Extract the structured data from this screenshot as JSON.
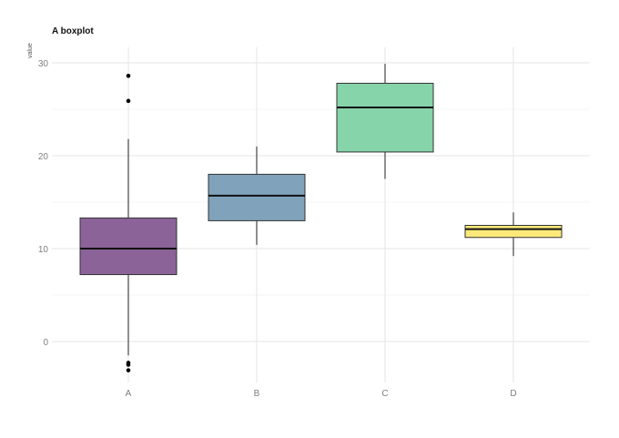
{
  "chart_data": {
    "type": "boxplot",
    "title": "A boxplot",
    "xlabel": "",
    "ylabel": "value",
    "ylim": [
      -4.5,
      31.5
    ],
    "yticks": [
      0,
      10,
      20,
      30
    ],
    "grid": true,
    "legend": null,
    "categories": [
      "A",
      "B",
      "C",
      "D"
    ],
    "boxes": [
      {
        "name": "A",
        "whisker_low": -1.5,
        "q1": 7.2,
        "median": 10.0,
        "q3": 13.3,
        "whisker_high": 21.8,
        "outliers": [
          28.6,
          25.9,
          -2.3,
          -2.5,
          -3.1
        ],
        "color": "#8b6399"
      },
      {
        "name": "B",
        "whisker_low": 10.4,
        "q1": 13.0,
        "median": 15.7,
        "q3": 18.0,
        "whisker_high": 21.0,
        "outliers": [],
        "color": "#80a3bb"
      },
      {
        "name": "C",
        "whisker_low": 17.5,
        "q1": 20.4,
        "median": 25.2,
        "q3": 27.8,
        "whisker_high": 29.9,
        "outliers": [],
        "color": "#86d4aa"
      },
      {
        "name": "D",
        "whisker_low": 9.2,
        "q1": 11.2,
        "median": 12.1,
        "q3": 12.5,
        "whisker_high": 13.9,
        "outliers": [],
        "color": "#fde97a"
      }
    ]
  }
}
